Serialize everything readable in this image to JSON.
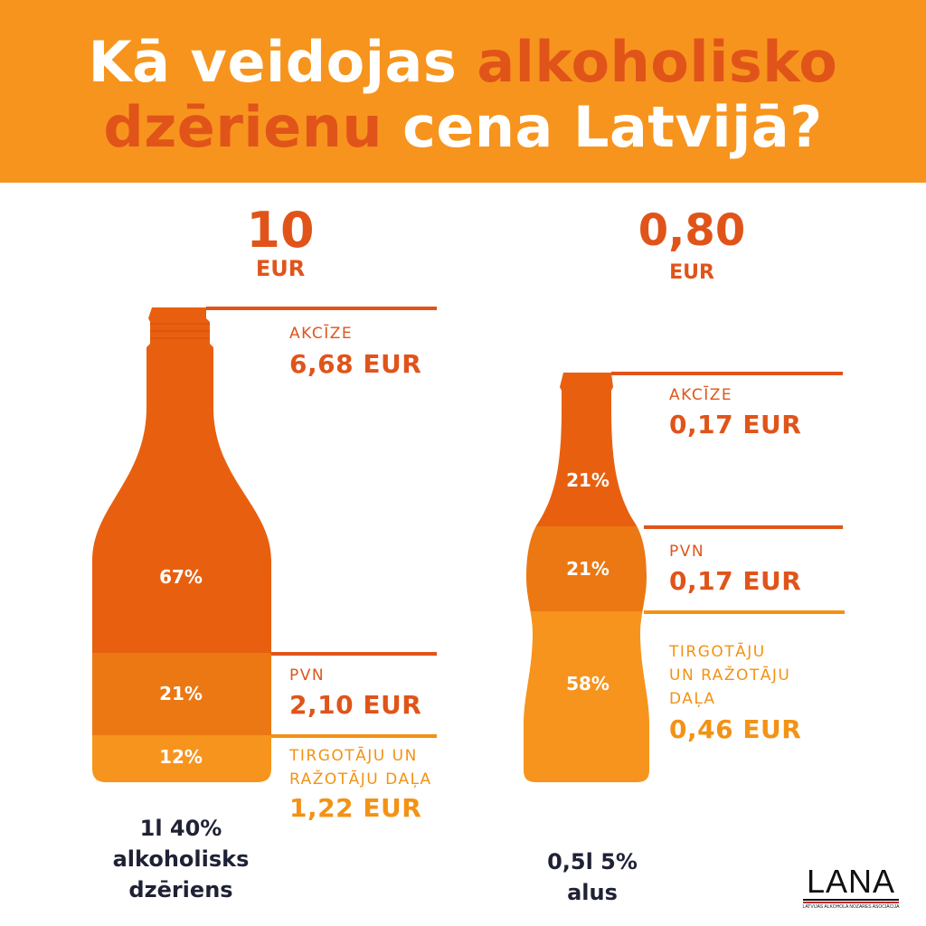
{
  "header": {
    "title_part1": "Kā veidojas",
    "title_part2": "alkoholisko",
    "title_part3": "dzērienu",
    "title_part4": "cena Latvijā?"
  },
  "colors": {
    "banner": "#f7941d",
    "accent": "#e0541a",
    "segment_dark": "#e8600f",
    "segment_mid": "#eb7813",
    "segment_light": "#f7941d",
    "caption_text": "#1f2235"
  },
  "spirits": {
    "price": "10",
    "currency": "EUR",
    "caption_line1": "1l 40%",
    "caption_line2": "alkoholisks",
    "caption_line3": "dzēriens",
    "segments": [
      {
        "percent": "67%",
        "share": 0.67,
        "label": "AKCĪZE",
        "amount": "6,68 EUR"
      },
      {
        "percent": "21%",
        "share": 0.21,
        "label": "PVN",
        "amount": "2,10 EUR"
      },
      {
        "percent": "12%",
        "share": 0.12,
        "label_line1": "TIRGOTĀJU UN",
        "label_line2": "RAŽOTĀJU DAĻA",
        "amount": "1,22 EUR"
      }
    ]
  },
  "beer": {
    "price": "0,80",
    "currency": "EUR",
    "caption_line1": "0,5l 5%",
    "caption_line2": "alus",
    "segments": [
      {
        "percent": "21%",
        "share": 0.21,
        "label": "AKCĪZE",
        "amount": "0,17 EUR"
      },
      {
        "percent": "21%",
        "share": 0.21,
        "label": "PVN",
        "amount": "0,17 EUR"
      },
      {
        "percent": "58%",
        "share": 0.58,
        "label_line1": "TIRGOTĀJU",
        "label_line2": "UN RAŽOTĀJU",
        "label_line3": "DAĻA",
        "amount": "0,46 EUR"
      }
    ]
  },
  "logo": {
    "wordmark": "LANA",
    "subtitle": "LATVIJAS ALKOHOLA NOZARES ASOCIĀCIJA"
  }
}
